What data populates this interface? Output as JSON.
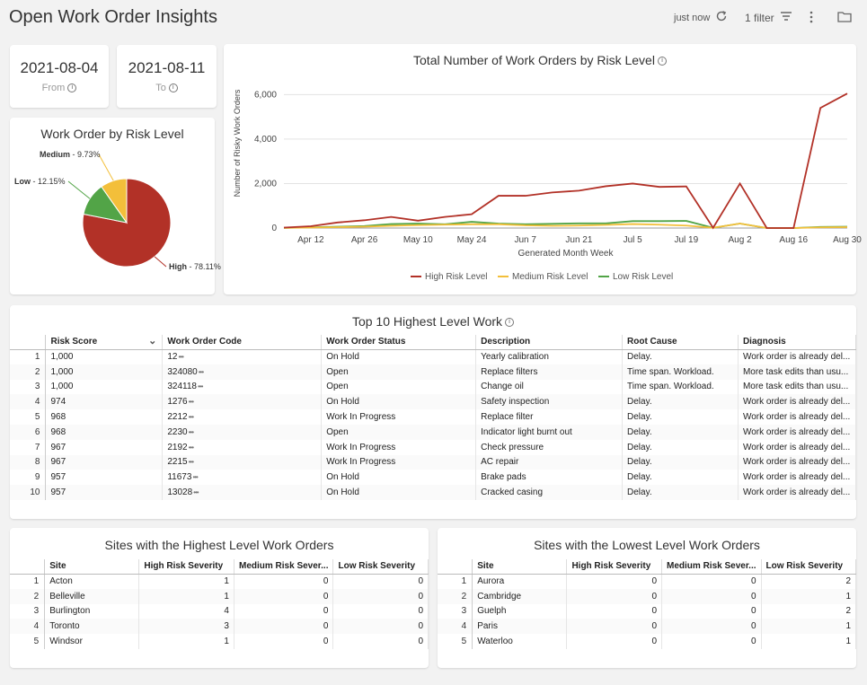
{
  "header": {
    "title": "Open Work Order Insights",
    "refresh_status": "just now",
    "filter_label": "1 filter"
  },
  "dates": {
    "from_value": "2021-08-04",
    "from_label": "From",
    "to_value": "2021-08-11",
    "to_label": "To"
  },
  "pie": {
    "title": "Work Order by Risk Level",
    "slices": [
      {
        "name": "High",
        "pct": "78.11%",
        "value": 78.11,
        "color": "#b23127"
      },
      {
        "name": "Low",
        "pct": "12.15%",
        "value": 12.15,
        "color": "#52a447"
      },
      {
        "name": "Medium",
        "pct": "9.73%",
        "value": 9.73,
        "color": "#f3bf3a"
      }
    ]
  },
  "chart_data": {
    "type": "line",
    "title": "Total Number of Work Orders by Risk Level",
    "xlabel": "Generated Month Week",
    "ylabel": "Number of Risky Work Orders",
    "ylim": [
      0,
      6500
    ],
    "yticks": [
      "0",
      "2,000",
      "4,000",
      "6,000"
    ],
    "ytick_values": [
      0,
      2000,
      4000,
      6000
    ],
    "xticks": [
      "Apr 12",
      "Apr 26",
      "May 10",
      "May 24",
      "Jun 7",
      "Jun 21",
      "Jul 5",
      "Jul 19",
      "Aug 2",
      "Aug 16",
      "Aug 30"
    ],
    "xtick_index": [
      1,
      3,
      5,
      7,
      9,
      11,
      13,
      15,
      17,
      19,
      21
    ],
    "series": [
      {
        "name": "High Risk Level",
        "color": "#b23127",
        "values": [
          20,
          80,
          250,
          350,
          500,
          330,
          500,
          620,
          1450,
          1450,
          1600,
          1680,
          1880,
          2000,
          1850,
          1870,
          10,
          2000,
          0,
          0,
          5400,
          6050
        ]
      },
      {
        "name": "Medium Risk Level",
        "color": "#f3bf3a",
        "values": [
          5,
          20,
          40,
          60,
          100,
          130,
          150,
          170,
          170,
          120,
          100,
          110,
          140,
          180,
          150,
          110,
          10,
          200,
          0,
          0,
          30,
          40
        ]
      },
      {
        "name": "Low Risk Level",
        "color": "#52a447",
        "values": [
          5,
          30,
          60,
          90,
          180,
          200,
          170,
          280,
          200,
          170,
          190,
          210,
          210,
          310,
          310,
          320,
          10,
          200,
          0,
          0,
          50,
          60
        ]
      }
    ]
  },
  "top10": {
    "title": "Top 10 Highest Level Work",
    "columns": [
      "Risk Score",
      "Work Order Code",
      "Work Order Status",
      "Description",
      "Root Cause",
      "Diagnosis"
    ],
    "rows": [
      [
        "1",
        "1,000",
        "12",
        "On Hold",
        "Yearly calibration",
        "Delay.",
        "Work order is already del..."
      ],
      [
        "2",
        "1,000",
        "324080",
        "Open",
        "Replace filters",
        "Time span. Workload.",
        "More task edits than usu..."
      ],
      [
        "3",
        "1,000",
        "324118",
        "Open",
        "Change oil",
        "Time span. Workload.",
        "More task edits than usu..."
      ],
      [
        "4",
        "974",
        "1276",
        "On Hold",
        "Safety inspection",
        "Delay.",
        "Work order is already del..."
      ],
      [
        "5",
        "968",
        "2212",
        "Work In Progress",
        "Replace filter",
        "Delay.",
        "Work order is already del..."
      ],
      [
        "6",
        "968",
        "2230",
        "Open",
        "Indicator light burnt out",
        "Delay.",
        "Work order is already del..."
      ],
      [
        "7",
        "967",
        "2192",
        "Work In Progress",
        "Check pressure",
        "Delay.",
        "Work order is already del..."
      ],
      [
        "8",
        "967",
        "2215",
        "Work In Progress",
        "AC repair",
        "Delay.",
        "Work order is already del..."
      ],
      [
        "9",
        "957",
        "11673",
        "On Hold",
        "Brake pads",
        "Delay.",
        "Work order is already del..."
      ],
      [
        "10",
        "957",
        "13028",
        "On Hold",
        "Cracked casing",
        "Delay.",
        "Work order is already del..."
      ]
    ]
  },
  "sites_high": {
    "title": "Sites with the Highest Level Work Orders",
    "columns": [
      "Site",
      "High Risk Severity",
      "Medium Risk Sever...",
      "Low Risk Severity"
    ],
    "rows": [
      [
        "1",
        "Acton",
        "1",
        "0",
        "0"
      ],
      [
        "2",
        "Belleville",
        "1",
        "0",
        "0"
      ],
      [
        "3",
        "Burlington",
        "4",
        "0",
        "0"
      ],
      [
        "4",
        "Toronto",
        "3",
        "0",
        "0"
      ],
      [
        "5",
        "Windsor",
        "1",
        "0",
        "0"
      ]
    ]
  },
  "sites_low": {
    "title": "Sites with the Lowest Level Work Orders",
    "columns": [
      "Site",
      "High Risk Severity",
      "Medium Risk Sever...",
      "Low Risk Severity"
    ],
    "rows": [
      [
        "1",
        "Aurora",
        "0",
        "0",
        "2"
      ],
      [
        "2",
        "Cambridge",
        "0",
        "0",
        "1"
      ],
      [
        "3",
        "Guelph",
        "0",
        "0",
        "2"
      ],
      [
        "4",
        "Paris",
        "0",
        "0",
        "1"
      ],
      [
        "5",
        "Waterloo",
        "0",
        "0",
        "1"
      ]
    ]
  }
}
